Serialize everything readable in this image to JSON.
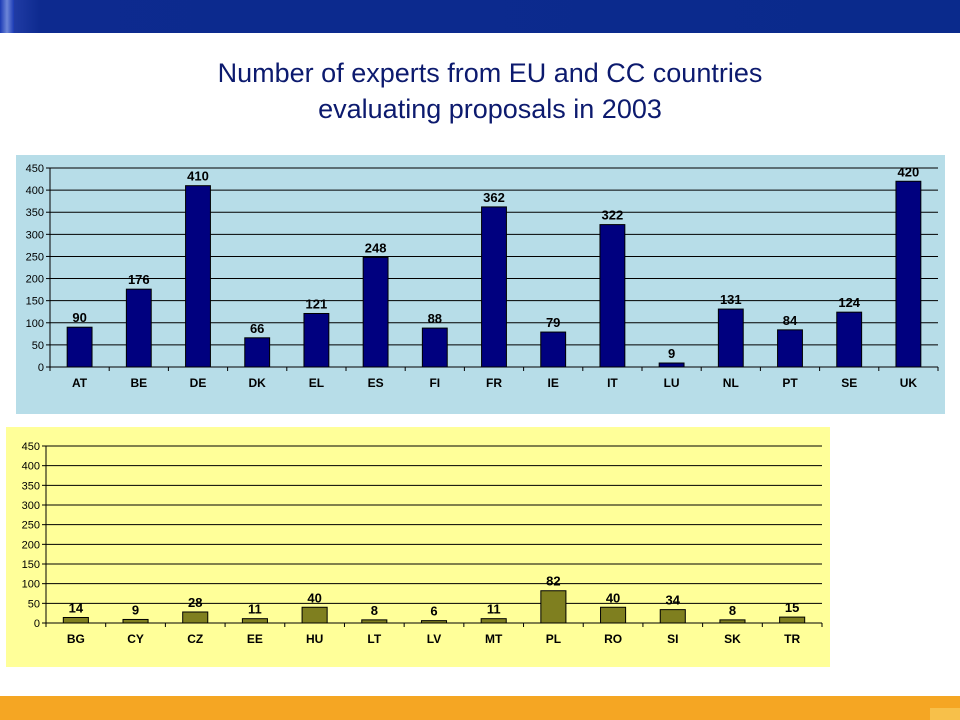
{
  "title": {
    "line1": "Number of experts from EU and CC countries",
    "line2": "evaluating proposals in 2003"
  },
  "colors": {
    "header_bar": "#0a2a8c",
    "footer_bar": "#f5a623",
    "title_text": "#0c1a6e"
  },
  "chart_data": [
    {
      "type": "bar",
      "categories": [
        "AT",
        "BE",
        "DE",
        "DK",
        "EL",
        "ES",
        "FI",
        "FR",
        "IE",
        "IT",
        "LU",
        "NL",
        "PT",
        "SE",
        "UK"
      ],
      "values": [
        90,
        176,
        410,
        66,
        121,
        248,
        88,
        362,
        79,
        322,
        9,
        131,
        84,
        124,
        420
      ],
      "ylim": [
        0,
        450
      ],
      "yticks": [
        0,
        50,
        100,
        150,
        200,
        250,
        300,
        350,
        400,
        450
      ],
      "grid": true,
      "legend": "none",
      "data_labels": true,
      "bar_color": "#00007f",
      "background_color": "#b7dde8",
      "plot_area_color": "#b7dde8",
      "title": "",
      "xlabel": "",
      "ylabel": ""
    },
    {
      "type": "bar",
      "categories": [
        "BG",
        "CY",
        "CZ",
        "EE",
        "HU",
        "LT",
        "LV",
        "MT",
        "PL",
        "RO",
        "SI",
        "SK",
        "TR"
      ],
      "values": [
        14,
        9,
        28,
        11,
        40,
        8,
        6,
        11,
        82,
        40,
        34,
        8,
        15
      ],
      "ylim": [
        0,
        450
      ],
      "yticks": [
        0,
        50,
        100,
        150,
        200,
        250,
        300,
        350,
        400,
        450
      ],
      "grid": true,
      "legend": "none",
      "data_labels": true,
      "bar_color": "#7f7f1f",
      "background_color": "#ffff99",
      "plot_area_color": "#ffff99",
      "title": "",
      "xlabel": "",
      "ylabel": ""
    }
  ]
}
